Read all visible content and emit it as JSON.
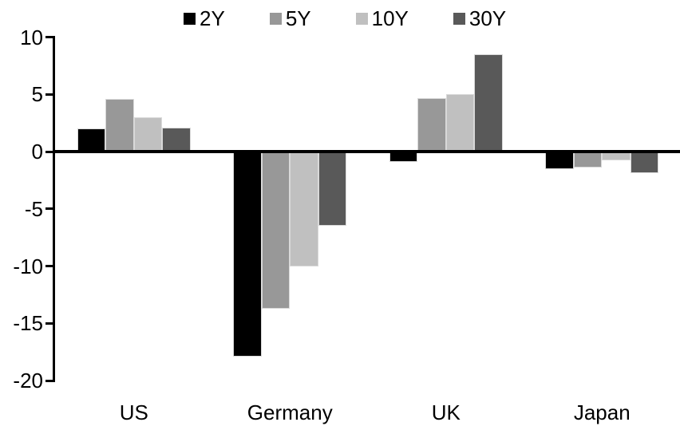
{
  "chart_data": {
    "type": "bar",
    "title": "",
    "xlabel": "",
    "ylabel": "",
    "categories": [
      "US",
      "Germany",
      "UK",
      "Japan"
    ],
    "series": [
      {
        "name": "2Y",
        "color": "#000000",
        "values": [
          2.0,
          -17.9,
          -0.9,
          -1.5
        ]
      },
      {
        "name": "5Y",
        "color": "#989898",
        "values": [
          4.6,
          -13.7,
          4.7,
          -1.4
        ]
      },
      {
        "name": "10Y",
        "color": "#c0c0c0",
        "values": [
          3.0,
          -10.0,
          5.0,
          -0.8
        ]
      },
      {
        "name": "30Y",
        "color": "#595959",
        "values": [
          2.1,
          -6.5,
          8.5,
          -1.9
        ]
      }
    ],
    "ylim": [
      -20,
      10
    ],
    "yticks": [
      10,
      5,
      0,
      -5,
      -10,
      -15,
      -20
    ],
    "legend_position": "top",
    "grid": false,
    "axis_color": "#000000",
    "background_color": "#ffffff"
  }
}
